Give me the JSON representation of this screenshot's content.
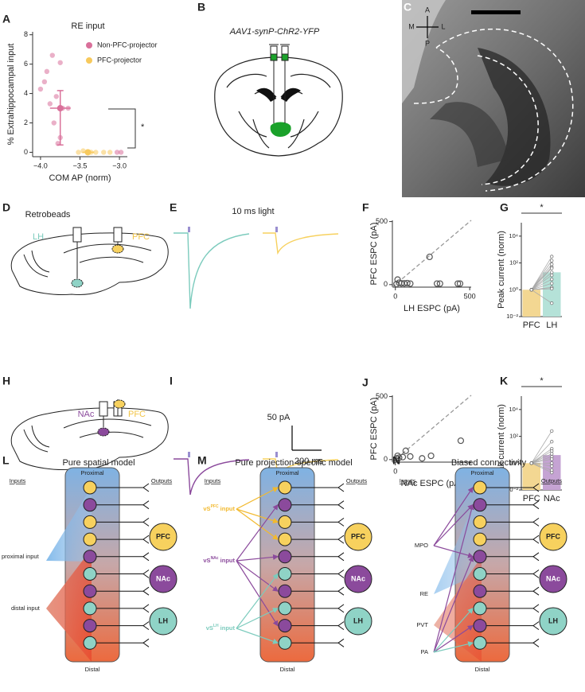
{
  "chart_data": [
    {
      "type": "scatter",
      "panel": "A",
      "title": "RE input",
      "xlabel": "COM AP (norm)",
      "ylabel": "% Extrahippocampal input",
      "xlim": [
        -4.1,
        -2.9
      ],
      "ylim": [
        -0.3,
        8.2
      ],
      "xticks": [
        {
          "value": -4,
          "label": "−4.0"
        },
        {
          "value": -3.5,
          "label": "−3.5"
        },
        {
          "value": -3,
          "label": "−3.0"
        }
      ],
      "yticks": [
        0,
        2,
        4,
        6,
        8
      ],
      "legend": "upper right",
      "annotation": "*",
      "series": [
        {
          "name": "Non-PFC-projector",
          "color": "#d9709a",
          "x": [
            -4.0,
            -3.92,
            -3.85,
            -3.75,
            -3.8,
            -3.72,
            -3.65,
            -3.83,
            -3.75,
            -3.88,
            -3.95,
            -3.78,
            -2.98,
            -3.03
          ],
          "values": [
            4.3,
            5.5,
            6.6,
            6.1,
            3.8,
            3.0,
            3.0,
            2.0,
            1.0,
            3.3,
            4.8,
            0.6,
            0,
            0
          ],
          "mean": {
            "x": -3.75,
            "y": 3.0,
            "x_err": [
              0.13,
              0.13
            ],
            "y_err": [
              2.5,
              1.2
            ]
          }
        },
        {
          "name": "PFC-projector",
          "color": "#f7c95c",
          "x": [
            -3.52,
            -3.46,
            -3.4,
            -3.36,
            -3.3,
            -3.2,
            -3.12
          ],
          "values": [
            0,
            0.1,
            0,
            0,
            0,
            0,
            0
          ],
          "mean": {
            "x": -3.4,
            "y": 0,
            "x_err": [
              0.07,
              0.08
            ],
            "y_err": [
              0,
              0
            ]
          }
        }
      ]
    },
    {
      "type": "scatter",
      "panel": "F",
      "xlabel": "LH ESPC (pA)",
      "ylabel": "PFC ESPC (pA)",
      "xlim": [
        -20,
        510
      ],
      "ylim": [
        -20,
        510
      ],
      "xticks": [
        0,
        500
      ],
      "yticks": [
        0,
        500
      ],
      "diagonal": true,
      "color": "#555555",
      "marker": "open",
      "x": [
        15,
        25,
        8,
        40,
        60,
        80,
        100,
        230,
        280,
        300,
        420,
        435
      ],
      "values": [
        40,
        15,
        5,
        10,
        10,
        12,
        8,
        220,
        8,
        8,
        8,
        8
      ]
    },
    {
      "type": "bar",
      "panel": "G",
      "ylabel": "Peak current (norm)",
      "log_scale": true,
      "annotation": "*",
      "ylim": [
        0.01,
        100000
      ],
      "yticks": [
        {
          "value": 0.01,
          "label": "10⁻²"
        },
        {
          "value": 1,
          "label": "10⁰"
        },
        {
          "value": 100,
          "label": "10²"
        },
        {
          "value": 10000,
          "label": "10⁴"
        }
      ],
      "categories": [
        "PFC",
        "LH"
      ],
      "values": [
        1,
        20
      ],
      "colors": [
        "#f3d792",
        "#b5e2d8"
      ],
      "points": [
        [
          1,
          1,
          1,
          1,
          1,
          1,
          1,
          1,
          1,
          1,
          1,
          1
        ],
        [
          300,
          150,
          80,
          50,
          40,
          20,
          12,
          6,
          3,
          1.5,
          0.1,
          1.2
        ]
      ]
    },
    {
      "type": "scatter",
      "panel": "J",
      "xlabel": "NAc ESPC (pA)",
      "ylabel": "PFC ESPC (pA)",
      "xlim": [
        -20,
        510
      ],
      "ylim": [
        -20,
        510
      ],
      "xticks": [
        0,
        500
      ],
      "yticks": [
        0,
        500
      ],
      "diagonal": true,
      "color": "#555555",
      "marker": "open",
      "x": [
        8,
        15,
        25,
        50,
        70,
        100,
        180,
        240,
        440
      ],
      "values": [
        10,
        30,
        15,
        20,
        70,
        25,
        10,
        30,
        150
      ]
    },
    {
      "type": "bar",
      "panel": "K",
      "ylabel": "Peak current (norm)",
      "log_scale": true,
      "annotation": "*",
      "ylim": [
        0.01,
        100000
      ],
      "yticks": [
        {
          "value": 0.01,
          "label": "10⁻²"
        },
        {
          "value": 1,
          "label": "10⁰"
        },
        {
          "value": 100,
          "label": "10²"
        },
        {
          "value": 10000,
          "label": "10⁴"
        }
      ],
      "categories": [
        "PFC",
        "NAc"
      ],
      "values": [
        1,
        4
      ],
      "colors": [
        "#f3d792",
        "#c5a3d3"
      ],
      "points": [
        [
          1,
          1,
          1,
          1,
          1,
          1,
          1,
          1,
          1,
          1,
          1
        ],
        [
          250,
          40,
          12,
          8,
          5,
          3,
          2,
          1,
          0.6,
          0.3,
          0.2
        ]
      ]
    }
  ],
  "figure": {
    "B": {
      "label": "B",
      "construct": "AAV1-synP-ChR2-YFP"
    },
    "C": {
      "label": "C",
      "compass": {
        "up": "A",
        "down": "P",
        "left": "M",
        "right": "L"
      }
    },
    "D": {
      "label": "D",
      "title": "Retrobeads",
      "targets": [
        "LH",
        "PFC"
      ]
    },
    "E": {
      "label": "E",
      "title": "10 ms light"
    },
    "H": {
      "label": "H",
      "targets": [
        "NAc",
        "PFC"
      ]
    },
    "I": {
      "label": "I",
      "scale_y": "50 pA",
      "scale_x": "200 ms"
    },
    "L": {
      "label": "L",
      "title": "Pure spatial model",
      "inputs_heading": "Inputs",
      "outputs_heading": "Outputs",
      "proximal": "Proximal",
      "distal": "Distal",
      "inputs": [
        "proximal input",
        "distal input"
      ],
      "outputs": [
        "PFC",
        "NAc",
        "LH"
      ]
    },
    "M": {
      "label": "M",
      "title": "Pure projection-specific model",
      "inputs_heading": "Inputs",
      "outputs_heading": "Outputs",
      "proximal": "Proximal",
      "distal": "Distal",
      "inputs": [
        {
          "prefix": "vS",
          "sup": "PFC",
          "suffix": " input"
        },
        {
          "prefix": "vS",
          "sup": "NAc",
          "suffix": " input"
        },
        {
          "prefix": "vS",
          "sup": "LH",
          "suffix": " input"
        }
      ],
      "outputs": [
        "PFC",
        "NAc",
        "LH"
      ]
    },
    "N": {
      "label": "N",
      "title": "Biased connectivity",
      "inputs_heading": "Inputs",
      "outputs_heading": "Outputs",
      "proximal": "Proximal",
      "distal": "Distal",
      "inputs": [
        "MPO",
        "RE",
        "PVT",
        "PA"
      ],
      "outputs": [
        "PFC",
        "NAc",
        "LH"
      ]
    }
  }
}
